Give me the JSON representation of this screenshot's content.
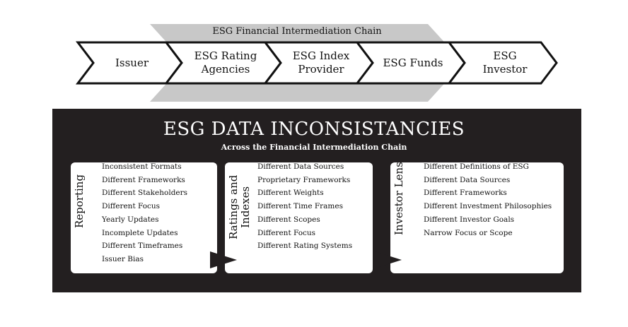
{
  "chain": {
    "title": "ESG Financial Intermediation Chain",
    "steps": [
      {
        "lines": [
          "Issuer"
        ]
      },
      {
        "lines": [
          "ESG Rating",
          "Agencies"
        ]
      },
      {
        "lines": [
          "ESG Index",
          "Provider"
        ]
      },
      {
        "lines": [
          "ESG Funds"
        ]
      },
      {
        "lines": [
          "ESG",
          "Investor"
        ]
      }
    ]
  },
  "panel": {
    "title": "ESG DATA INCONSISTANCIES",
    "subtitle": "Across the Financial Intermediation Chain",
    "cards": [
      {
        "title_lines": [
          "Reporting"
        ],
        "items": [
          "Inconsistent Formats",
          "Different Frameworks",
          "Different Stakeholders",
          "Different Focus",
          "Yearly Updates",
          "Incomplete Updates",
          "Different Timeframes",
          "Issuer Bias"
        ]
      },
      {
        "title_lines": [
          "Ratings and",
          "Indexes"
        ],
        "items": [
          "Different Data Sources",
          "Proprietary Frameworks",
          "Different Weights",
          "Different Time Frames",
          "Different Scopes",
          "Different Focus",
          "Different Rating Systems"
        ]
      },
      {
        "title_lines": [
          "Investor Lens"
        ],
        "items": [
          "Different Definitions of ESG",
          "Different Data Sources",
          "Different Frameworks",
          "Different Investment Philosophies",
          "Different Investor Goals",
          "Narrow Focus or Scope"
        ]
      }
    ]
  }
}
